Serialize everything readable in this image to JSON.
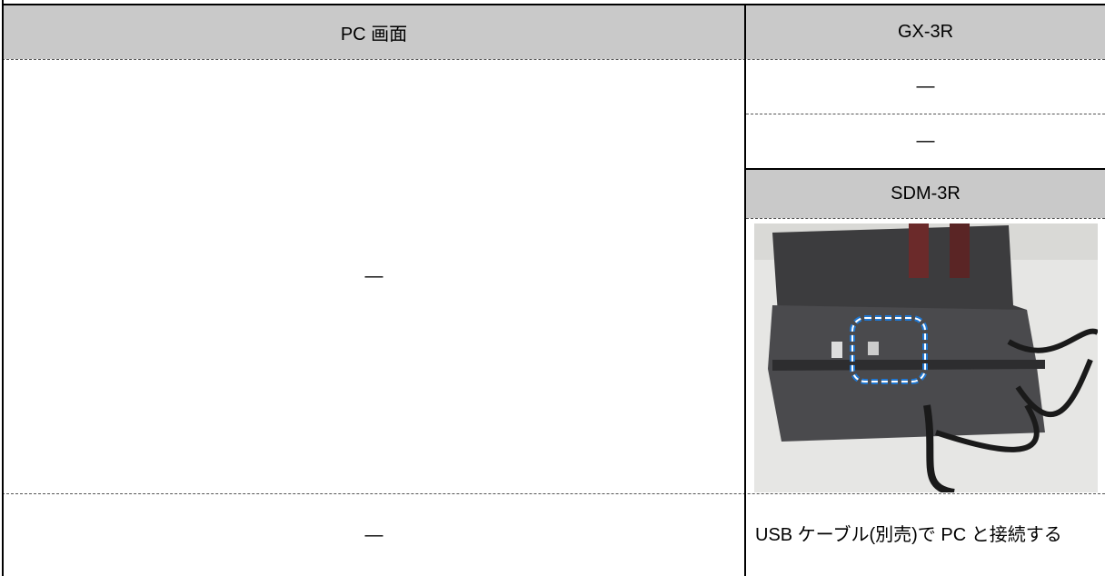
{
  "table": {
    "header": [
      "PC 画面",
      "GX-3R"
    ],
    "left_main": "—",
    "right_rows": [
      "—",
      "—"
    ],
    "sub_header": "SDM-3R",
    "footer_left": "—",
    "footer_right": "USB ケーブル(別売)で PC と接続する"
  }
}
